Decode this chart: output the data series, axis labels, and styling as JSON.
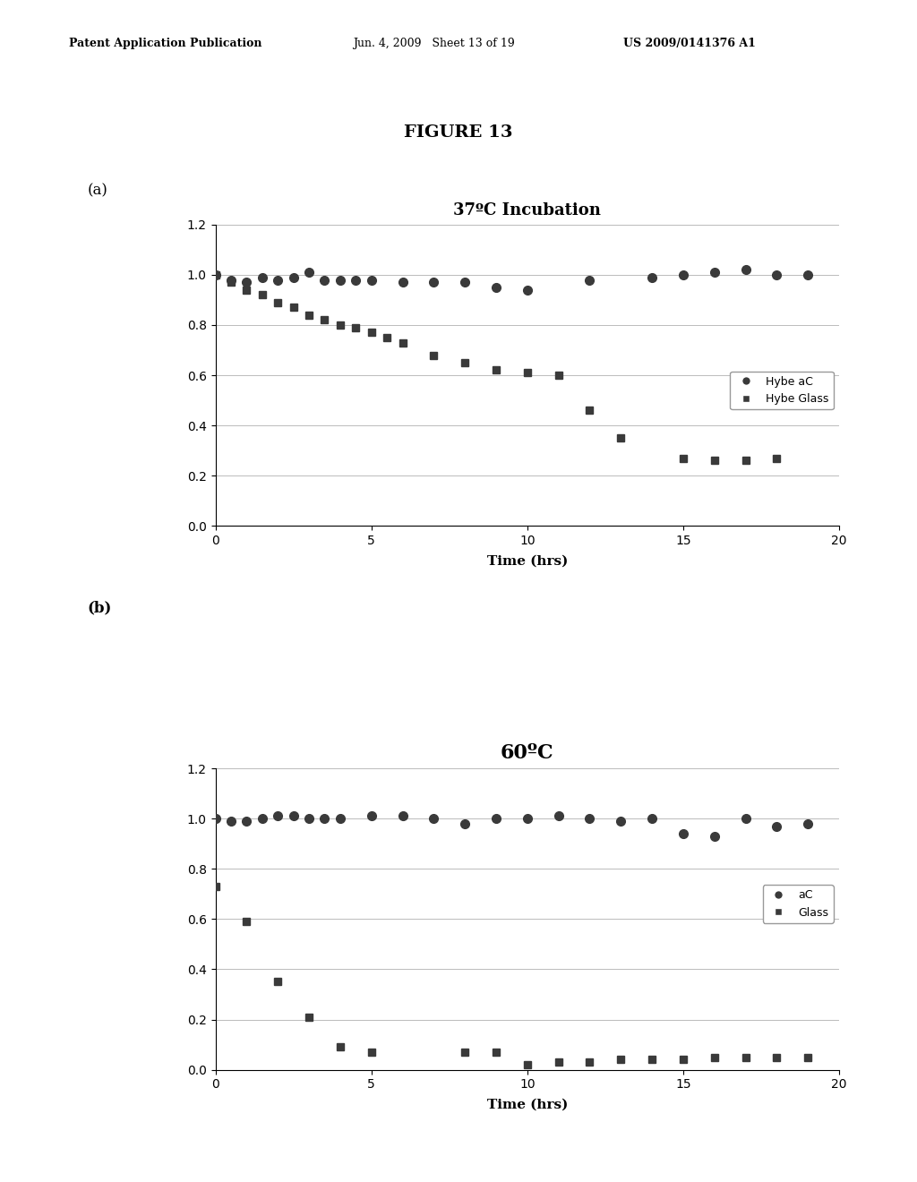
{
  "header_left": "Patent Application Publication",
  "header_mid": "Jun. 4, 2009   Sheet 13 of 19",
  "header_right": "US 2009/0141376 A1",
  "figure_title": "FIGURE 13",
  "label_a": "(a)",
  "label_b": "(b)",
  "plot_a": {
    "title": "37ºC Incubation",
    "xlabel": "Time (hrs)",
    "xlim": [
      0,
      20
    ],
    "ylim": [
      0,
      1.2
    ],
    "yticks": [
      0,
      0.2,
      0.4,
      0.6,
      0.8,
      1.0,
      1.2
    ],
    "xticks": [
      0,
      5,
      10,
      15,
      20
    ],
    "legend_labels": [
      "Hybe aC",
      "Hybe Glass"
    ],
    "series_aC": {
      "x": [
        0,
        0.5,
        1,
        1.5,
        2,
        2.5,
        3,
        3.5,
        4,
        4.5,
        5,
        6,
        7,
        8,
        9,
        10,
        12,
        14,
        15,
        16,
        17,
        18,
        19
      ],
      "y": [
        1.0,
        0.98,
        0.97,
        0.99,
        0.98,
        0.99,
        1.01,
        0.98,
        0.98,
        0.98,
        0.98,
        0.97,
        0.97,
        0.97,
        0.95,
        0.94,
        0.98,
        0.99,
        1.0,
        1.01,
        1.02,
        1.0,
        1.0
      ]
    },
    "series_glass": {
      "x": [
        0,
        0.5,
        1,
        1.5,
        2,
        2.5,
        3,
        3.5,
        4,
        4.5,
        5,
        5.5,
        6,
        7,
        8,
        9,
        10,
        11,
        12,
        13,
        15,
        16,
        17,
        18
      ],
      "y": [
        1.0,
        0.97,
        0.94,
        0.92,
        0.89,
        0.87,
        0.84,
        0.82,
        0.8,
        0.79,
        0.77,
        0.75,
        0.73,
        0.68,
        0.65,
        0.62,
        0.61,
        0.6,
        0.46,
        0.35,
        0.27,
        0.26,
        0.26,
        0.27
      ]
    }
  },
  "plot_b": {
    "title": "60ºC",
    "xlabel": "Time (hrs)",
    "xlim": [
      0,
      20
    ],
    "ylim": [
      0,
      1.2
    ],
    "yticks": [
      0,
      0.2,
      0.4,
      0.6,
      0.8,
      1.0,
      1.2
    ],
    "xticks": [
      0,
      5,
      10,
      15,
      20
    ],
    "legend_labels": [
      "aC",
      "Glass"
    ],
    "series_aC": {
      "x": [
        0,
        0.5,
        1,
        1.5,
        2,
        2.5,
        3,
        3.5,
        4,
        5,
        6,
        7,
        8,
        9,
        10,
        11,
        12,
        13,
        14,
        15,
        16,
        17,
        18,
        19
      ],
      "y": [
        1.0,
        0.99,
        0.99,
        1.0,
        1.01,
        1.01,
        1.0,
        1.0,
        1.0,
        1.01,
        1.01,
        1.0,
        0.98,
        1.0,
        1.0,
        1.01,
        1.0,
        0.99,
        1.0,
        0.94,
        0.93,
        1.0,
        0.97,
        0.98
      ]
    },
    "series_glass": {
      "x": [
        0,
        1,
        2,
        3,
        4,
        5,
        8,
        9,
        10,
        11,
        12,
        13,
        14,
        15,
        16,
        17,
        18,
        19
      ],
      "y": [
        0.73,
        0.59,
        0.35,
        0.21,
        0.09,
        0.07,
        0.07,
        0.07,
        0.02,
        0.03,
        0.03,
        0.04,
        0.04,
        0.04,
        0.05,
        0.05,
        0.05,
        0.05
      ]
    }
  },
  "marker_circle": "o",
  "marker_square": "s",
  "marker_color": "#3a3a3a",
  "marker_size_circle": 7,
  "marker_size_square": 6,
  "grid_color": "#bbbbbb",
  "background_color": "#ffffff",
  "title_a_fontsize": 13,
  "title_b_fontsize": 16,
  "axis_label_fontsize": 11,
  "tick_fontsize": 10,
  "legend_fontsize": 9,
  "header_fontsize": 9,
  "figure_title_fontsize": 14
}
